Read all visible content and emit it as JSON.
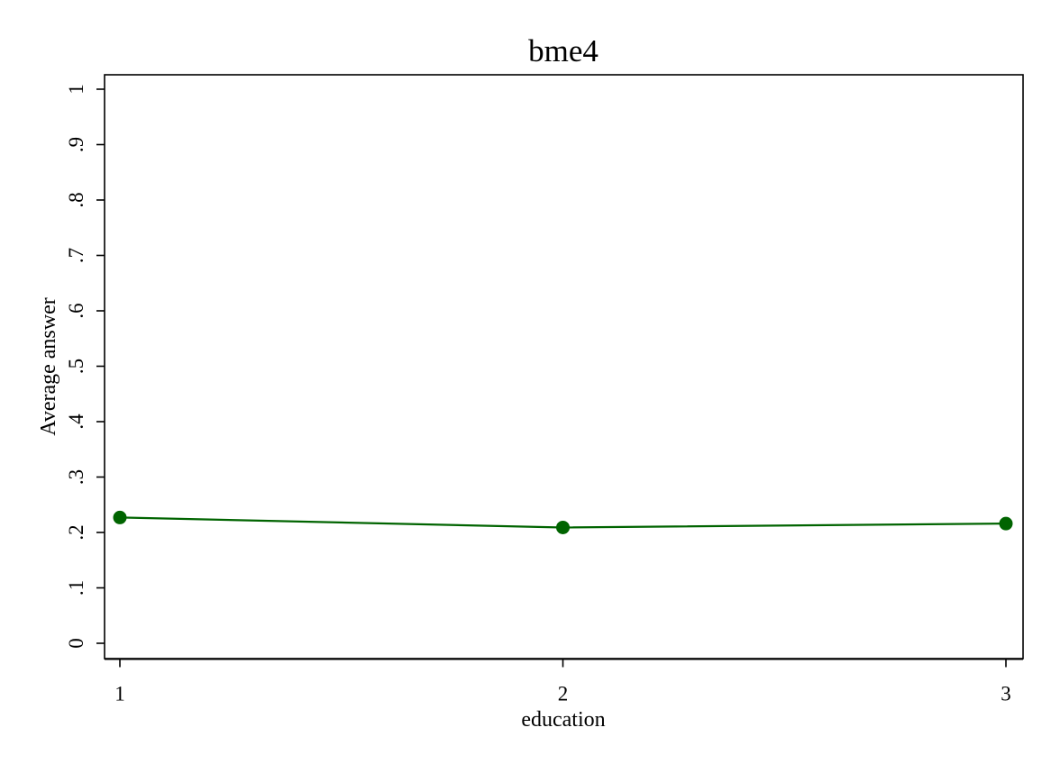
{
  "chart_data": {
    "type": "line",
    "title": "bme4",
    "xlabel": "education",
    "ylabel": "Average answer",
    "x": [
      1,
      2,
      3
    ],
    "x_tick_labels": [
      "1",
      "2",
      "3"
    ],
    "y_ticks": [
      0,
      0.1,
      0.2,
      0.3,
      0.4,
      0.5,
      0.6,
      0.7,
      0.8,
      0.9,
      1
    ],
    "y_tick_labels": [
      "0",
      ".1",
      ".2",
      ".3",
      ".4",
      ".5",
      ".6",
      ".7",
      ".8",
      ".9",
      "1"
    ],
    "xlim": [
      1,
      3
    ],
    "ylim": [
      0,
      1
    ],
    "series": [
      {
        "values": [
          0.227,
          0.209,
          0.216
        ],
        "color": "#006400",
        "marker": "circle"
      }
    ],
    "grid": false,
    "legend": "none"
  }
}
